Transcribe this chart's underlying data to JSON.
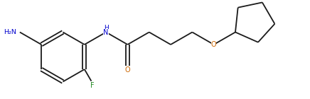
{
  "bg_color": "#ffffff",
  "bond_color": "#1a1a1a",
  "atom_colors": {
    "N": "#0000cd",
    "O": "#cc6600",
    "F": "#228b22",
    "C": "#1a1a1a"
  },
  "figsize": [
    4.36,
    1.4
  ],
  "dpi": 100
}
